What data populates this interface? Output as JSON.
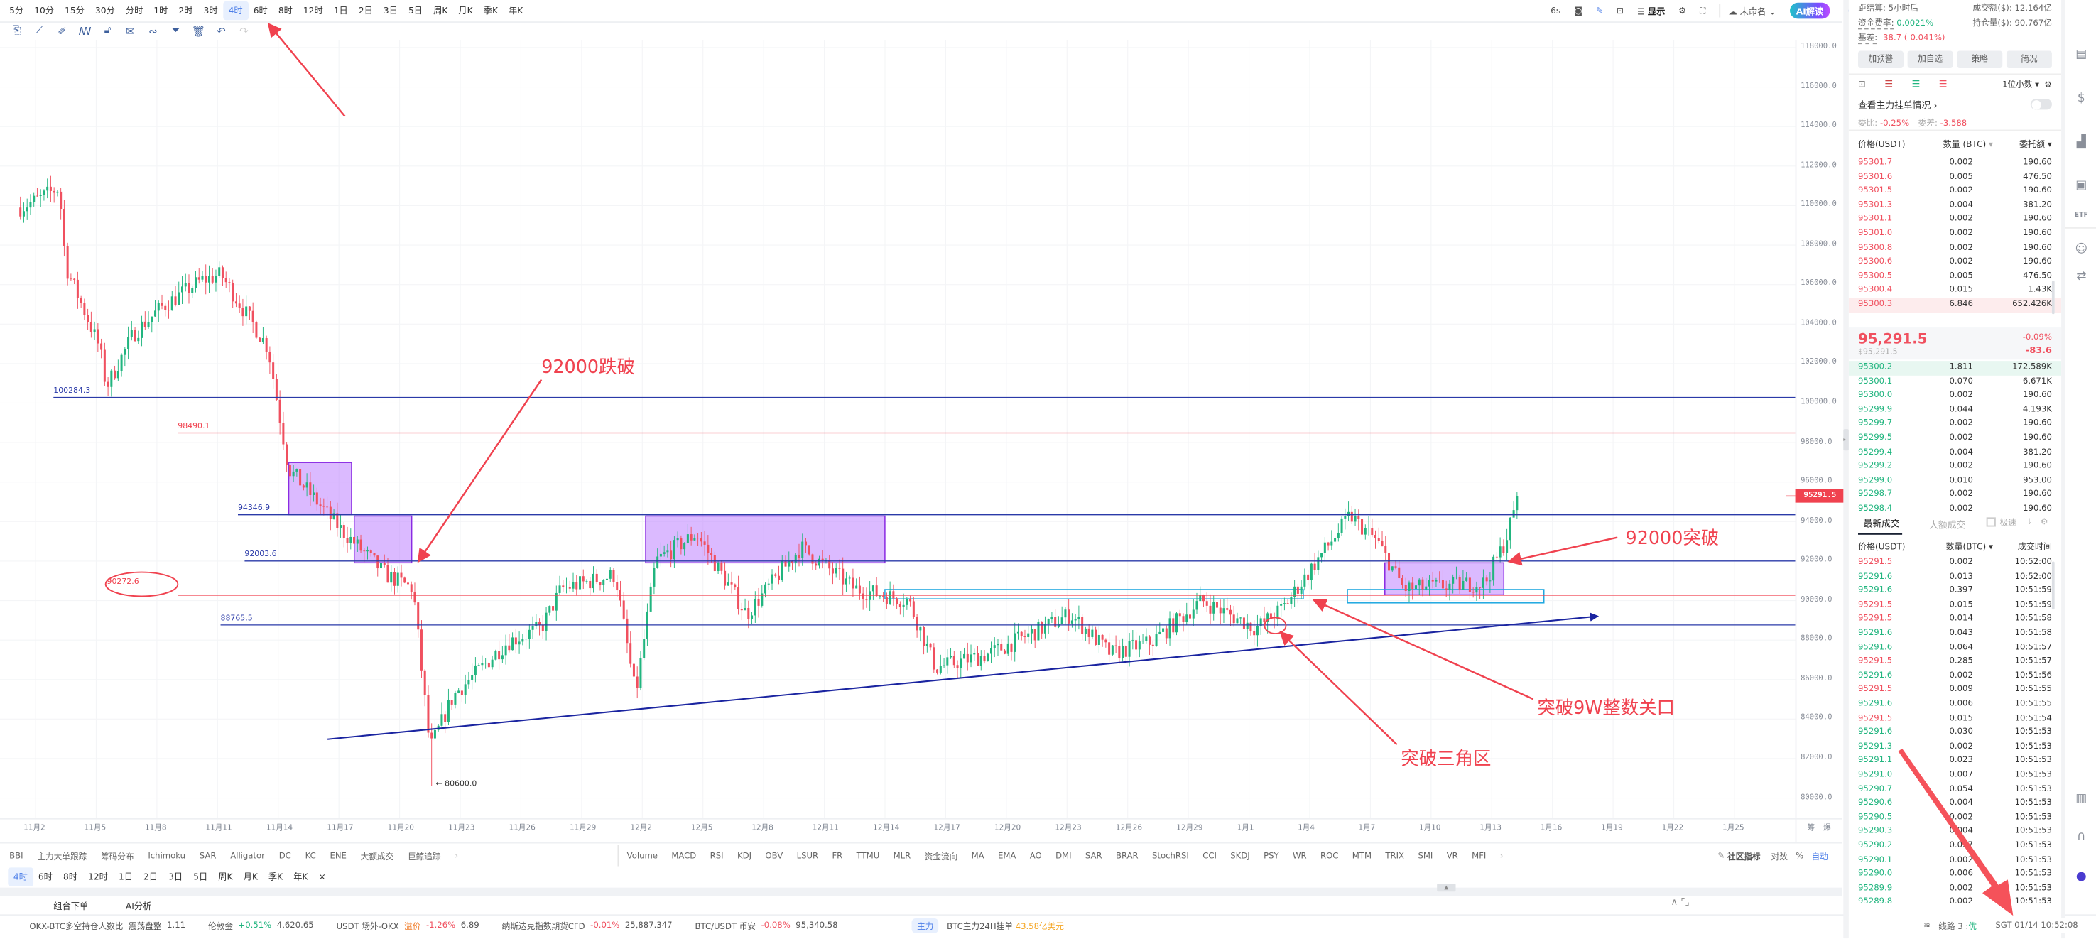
{
  "topbar": {
    "timeframes": [
      "5分",
      "10分",
      "15分",
      "30分",
      "分时",
      "1时",
      "2时",
      "3时",
      "4时",
      "6时",
      "8时",
      "12时",
      "1日",
      "2日",
      "3日",
      "5日",
      "周K",
      "月K",
      "季K",
      "年K"
    ],
    "active_timeframe": "4时",
    "refresh": "6s",
    "display_label": "显示",
    "layout_name": "未命名",
    "ai_button": "AI解读"
  },
  "drawing_tools": [
    "bookmark-icon",
    "ruler-icon",
    "brush-icon",
    "indicator-icon",
    "lock-icon",
    "note-icon",
    "magnet-icon",
    "filter-icon",
    "trash-icon",
    "undo-icon",
    "redo-icon"
  ],
  "chart_data": {
    "type": "candlestick",
    "timeframe": "4时",
    "y_ticks": [
      "118000.0",
      "116000.0",
      "114000.0",
      "112000.0",
      "110000.0",
      "108000.0",
      "106000.0",
      "104000.0",
      "102000.0",
      "100000.0",
      "98000.0",
      "96000.0",
      "94000.0",
      "92000.0",
      "90000.0",
      "88000.0",
      "86000.0",
      "84000.0",
      "82000.0",
      "80000.0"
    ],
    "ylim": [
      80000,
      118000
    ],
    "x_ticks": [
      "11月2",
      "11月5",
      "11月8",
      "11月11",
      "11月14",
      "11月17",
      "11月20",
      "11月23",
      "11月26",
      "11月29",
      "12月2",
      "12月5",
      "12月8",
      "12月11",
      "12月14",
      "12月17",
      "12月20",
      "12月23",
      "12月26",
      "12月29",
      "1月1",
      "1月4",
      "1月7",
      "1月10",
      "1月13",
      "1月16",
      "1月19",
      "1月22",
      "1月25"
    ],
    "x_axis_right_labels": [
      "筹",
      "爆"
    ],
    "last_price": "95291.5",
    "low_label": "80600.0",
    "low_value": 80600,
    "up_color": "#21b57f",
    "down_color": "#f0505f",
    "close_path": [
      [
        "10-31 06:00",
        109900
      ],
      [
        "11-02 00:00",
        110250
      ],
      [
        "11-03 04:00",
        110900
      ],
      [
        "11-03 12:00",
        106900
      ],
      [
        "11-05 04:00",
        102800
      ],
      [
        "11-05 12:00",
        100800
      ],
      [
        "11-06 20:00",
        103500
      ],
      [
        "11-08 04:00",
        104800
      ],
      [
        "11-10 04:00",
        106200
      ],
      [
        "11-11 04:00",
        106500
      ],
      [
        "11-13 12:00",
        102800
      ],
      [
        "11-14 12:00",
        96700
      ],
      [
        "11-17 00:00",
        93700
      ],
      [
        "11-19 08:00",
        91300
      ],
      [
        "11-20 16:00",
        90600
      ],
      [
        "11-21 12:00",
        82500
      ],
      [
        "11-22 16:00",
        85200
      ],
      [
        "11-25 08:00",
        87900
      ],
      [
        "11-27 00:00",
        88600
      ],
      [
        "11-28 00:00",
        90600
      ],
      [
        "11-30 16:00",
        91300
      ],
      [
        "12-01 16:00",
        85200
      ],
      [
        "12-02 16:00",
        92000
      ],
      [
        "12-04 16:00",
        93400
      ],
      [
        "12-07 04:00",
        89300
      ],
      [
        "12-09 20:00",
        92700
      ],
      [
        "12-12 12:00",
        90600
      ],
      [
        "12-15 04:00",
        90000
      ],
      [
        "12-16 12:00",
        86600
      ],
      [
        "12-19 04:00",
        87300
      ],
      [
        "12-23 04:00",
        89300
      ],
      [
        "12-25 04:00",
        87300
      ],
      [
        "12-27 04:00",
        87900
      ],
      [
        "12-29 16:00",
        90000
      ],
      [
        "01-01 08:00",
        88600
      ],
      [
        "01-02 16:00",
        89600
      ],
      [
        "01-04 08:00",
        92000
      ],
      [
        "01-06 00:00",
        94300
      ],
      [
        "01-07 08:00",
        93000
      ],
      [
        "01-08 16:00",
        90600
      ],
      [
        "01-12 16:00",
        90900
      ],
      [
        "01-13 16:00",
        93000
      ],
      [
        "01-14 08:00",
        95291.5
      ]
    ],
    "levels": [
      {
        "value": 100284.3,
        "label": "100284.3",
        "color": "#2a3aa8"
      },
      {
        "value": 98490.1,
        "label": "98490.1",
        "color": "#f0424f"
      },
      {
        "value": 94346.9,
        "label": "94346.9",
        "color": "#2a3aa8"
      },
      {
        "value": 92003.6,
        "label": "92003.6",
        "color": "#2a3aa8"
      },
      {
        "value": 90272.6,
        "label": "90272.6",
        "color": "#f0424f"
      },
      {
        "value": 88765.5,
        "label": "88765.5",
        "color": "#2a3aa8"
      }
    ],
    "annotations": [
      "92000跌破",
      "92000突破",
      "突破9W整数关口",
      "突破三角区"
    ]
  },
  "indicators": {
    "main": [
      "BBI",
      "主力大单跟踪",
      "筹码分布",
      "Ichimoku",
      "SAR",
      "Alligator",
      "DC",
      "KC",
      "ENE",
      "大额成交",
      "巨鲸追踪"
    ],
    "sub": [
      "Volume",
      "MACD",
      "RSI",
      "KDJ",
      "OBV",
      "LSUR",
      "FR",
      "TTMU",
      "MLR",
      "资金流向",
      "MA",
      "EMA",
      "AO",
      "DMI",
      "SAR",
      "BRAR",
      "StochRSI",
      "CCI",
      "SKDJ",
      "PSY",
      "WR",
      "ROC",
      "MTM",
      "TRIX",
      "SMI",
      "VR",
      "MFI"
    ],
    "community": "社区指标",
    "log": "对数",
    "percent": "%",
    "auto": "自动"
  },
  "bottom_timeframes": [
    "4时",
    "6时",
    "8时",
    "12时",
    "1日",
    "2日",
    "3日",
    "5日",
    "周K",
    "月K",
    "季K",
    "年K"
  ],
  "bottom_tabs": [
    "组合下单",
    "AI分析"
  ],
  "ticker": [
    {
      "name": "OKX-BTC多空持仓人数比",
      "tag": "震荡盘整",
      "change": "",
      "value": "1.11"
    },
    {
      "name": "伦敦金",
      "tag": "",
      "change": "+0.51%",
      "value": "4,620.65"
    },
    {
      "name": "USDT 场外-OKX",
      "tag": "溢价",
      "change": "-1.26%",
      "value": "6.89"
    },
    {
      "name": "纳斯达克指数期货CFD",
      "tag": "",
      "change": "-0.01%",
      "value": "25,887.347"
    },
    {
      "name": "BTC/USDT 币安",
      "tag": "",
      "change": "-0.08%",
      "value": "95,340.58"
    }
  ],
  "ticker_main": {
    "badge": "主力",
    "text": "BTC主力24H挂单",
    "value": "43.58亿美元"
  },
  "status": {
    "line": "线路 3 : ",
    "quality": "优",
    "time": "SGT 01/14 10:52:08"
  },
  "panel": {
    "settle_label": "距结算:",
    "settle_value": "5小时后",
    "turnover_label": "成交额($):",
    "turnover_value": "12.164亿",
    "funding_label": "资金费率:",
    "funding_value": "0.0021%",
    "oi_label": "持仓量($):",
    "oi_value": "90.767亿",
    "basis_label": "基差:",
    "basis_value": "-38.7 (-0.041%)",
    "buttons": [
      "加预警",
      "加自选",
      "策略",
      "简况"
    ],
    "precision": "1位小数",
    "main_orders": "查看主力挂单情况",
    "ratio_label": "委比:",
    "ratio_value": "-0.25%",
    "diff_label": "委差:",
    "diff_value": "-3.588",
    "ob_headers": [
      "价格(USDT)",
      "数量 (BTC)",
      "委托额"
    ],
    "asks": [
      [
        "95301.7",
        "0.002",
        "190.60"
      ],
      [
        "95301.6",
        "0.005",
        "476.50"
      ],
      [
        "95301.5",
        "0.002",
        "190.60"
      ],
      [
        "95301.3",
        "0.004",
        "381.20"
      ],
      [
        "95301.1",
        "0.002",
        "190.60"
      ],
      [
        "95301.0",
        "0.002",
        "190.60"
      ],
      [
        "95300.8",
        "0.002",
        "190.60"
      ],
      [
        "95300.6",
        "0.002",
        "190.60"
      ],
      [
        "95300.5",
        "0.005",
        "476.50"
      ],
      [
        "95300.4",
        "0.015",
        "1.43K"
      ],
      [
        "95300.3",
        "6.846",
        "652.426K"
      ]
    ],
    "last_price": "95,291.5",
    "last_price_usd": "$95,291.5",
    "change_pct": "-0.09%",
    "change_abs": "-83.6",
    "bids": [
      [
        "95300.2",
        "1.811",
        "172.589K"
      ],
      [
        "95300.1",
        "0.070",
        "6.671K"
      ],
      [
        "95300.0",
        "0.002",
        "190.60"
      ],
      [
        "95299.9",
        "0.044",
        "4.193K"
      ],
      [
        "95299.7",
        "0.002",
        "190.60"
      ],
      [
        "95299.5",
        "0.002",
        "190.60"
      ],
      [
        "95299.4",
        "0.004",
        "381.20"
      ],
      [
        "95299.2",
        "0.002",
        "190.60"
      ],
      [
        "95299.0",
        "0.010",
        "953.00"
      ],
      [
        "95298.7",
        "0.002",
        "190.60"
      ],
      [
        "95298.4",
        "0.002",
        "190.60"
      ]
    ],
    "trade_tabs": [
      "最新成交",
      "大额成交"
    ],
    "fast_label": "极速",
    "trade_headers": [
      "价格(USDT)",
      "数量(BTC)",
      "成交时间"
    ],
    "trades": [
      [
        "95291.5",
        "0.002",
        "10:52:00",
        "s"
      ],
      [
        "95291.6",
        "0.013",
        "10:52:00",
        "b"
      ],
      [
        "95291.6",
        "0.397",
        "10:51:59",
        "b"
      ],
      [
        "95291.5",
        "0.015",
        "10:51:59",
        "s"
      ],
      [
        "95291.5",
        "0.014",
        "10:51:58",
        "s"
      ],
      [
        "95291.6",
        "0.043",
        "10:51:58",
        "b"
      ],
      [
        "95291.6",
        "0.064",
        "10:51:57",
        "b"
      ],
      [
        "95291.5",
        "0.285",
        "10:51:57",
        "s"
      ],
      [
        "95291.6",
        "0.002",
        "10:51:56",
        "b"
      ],
      [
        "95291.5",
        "0.009",
        "10:51:55",
        "s"
      ],
      [
        "95291.6",
        "0.006",
        "10:51:55",
        "b"
      ],
      [
        "95291.5",
        "0.015",
        "10:51:54",
        "s"
      ],
      [
        "95291.6",
        "0.030",
        "10:51:53",
        "b"
      ],
      [
        "95291.3",
        "0.002",
        "10:51:53",
        "b"
      ],
      [
        "95291.1",
        "0.023",
        "10:51:53",
        "b"
      ],
      [
        "95291.0",
        "0.007",
        "10:51:53",
        "b"
      ],
      [
        "95290.7",
        "0.054",
        "10:51:53",
        "b"
      ],
      [
        "95290.6",
        "0.004",
        "10:51:53",
        "b"
      ],
      [
        "95290.5",
        "0.002",
        "10:51:53",
        "b"
      ],
      [
        "95290.3",
        "0.004",
        "10:51:53",
        "b"
      ],
      [
        "95290.2",
        "0.027",
        "10:51:53",
        "b"
      ],
      [
        "95290.1",
        "0.002",
        "10:51:53",
        "b"
      ],
      [
        "95290.0",
        "0.006",
        "10:51:53",
        "b"
      ],
      [
        "95289.9",
        "0.002",
        "10:51:53",
        "b"
      ],
      [
        "95289.8",
        "0.002",
        "10:51:53",
        "b"
      ]
    ]
  }
}
